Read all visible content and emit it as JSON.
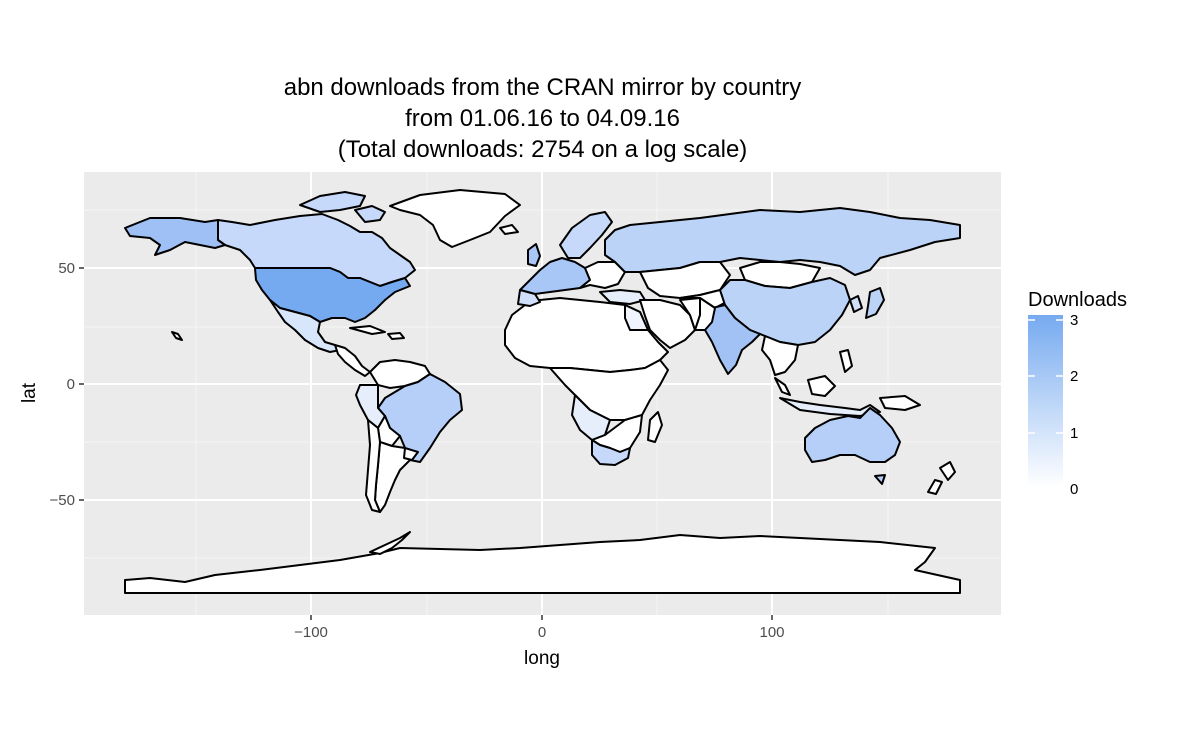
{
  "title": {
    "line1": "abn downloads from the CRAN mirror by country",
    "line2": "from 01.06.16 to 04.09.16",
    "line3": "(Total downloads: 2754 on a log scale)"
  },
  "chart_data": {
    "type": "choropleth",
    "title": "abn downloads from the CRAN mirror by country from 01.06.16 to 04.09.16 (Total downloads: 2754 on a log scale)",
    "xlabel": "long",
    "ylabel": "lat",
    "xlim": [
      -180,
      180
    ],
    "ylim": [
      -90,
      84
    ],
    "x_ticks": [
      {
        "value": -100,
        "label": "−100"
      },
      {
        "value": 0,
        "label": "0"
      },
      {
        "value": 100,
        "label": "100"
      }
    ],
    "y_ticks": [
      {
        "value": 50,
        "label": "50"
      },
      {
        "value": 0,
        "label": "0"
      },
      {
        "value": -50,
        "label": "−50"
      }
    ],
    "grid": true,
    "legend": {
      "title": "Downloads",
      "placement": "right",
      "range": [
        0,
        3.1
      ],
      "breaks": [
        {
          "value": 3,
          "label": "3"
        },
        {
          "value": 2,
          "label": "2"
        },
        {
          "value": 1,
          "label": "1"
        },
        {
          "value": 0,
          "label": "0"
        }
      ],
      "colors": {
        "low": "#ffffff",
        "high": "#76aaf0"
      }
    },
    "values": [
      {
        "region": "USA",
        "value": 3.0
      },
      {
        "region": "Alaska",
        "value": 1.9
      },
      {
        "region": "Canada",
        "value": 1.5
      },
      {
        "region": "Mexico",
        "value": 1.2
      },
      {
        "region": "Brazil",
        "value": 2.0
      },
      {
        "region": "Australia",
        "value": 2.0
      },
      {
        "region": "India",
        "value": 2.2
      },
      {
        "region": "China",
        "value": 1.9
      },
      {
        "region": "Russia",
        "value": 1.7
      },
      {
        "region": "Western Europe",
        "value": 2.1
      },
      {
        "region": "South Africa",
        "value": 1.5
      },
      {
        "region": "Greenland",
        "value": 0
      }
    ]
  }
}
